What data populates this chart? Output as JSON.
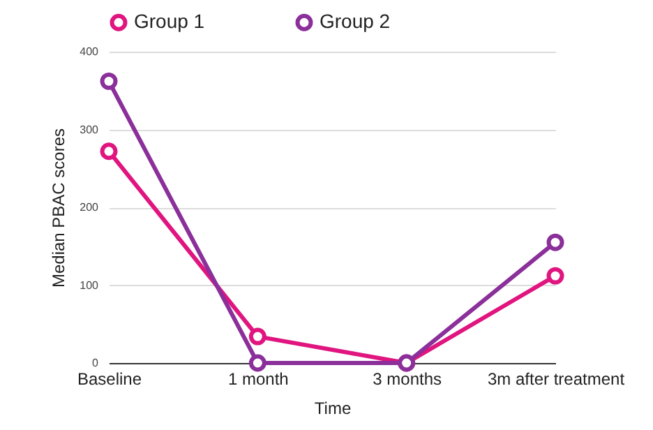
{
  "chart_data": {
    "type": "line",
    "xlabel": "Time",
    "ylabel": "Median PBAC scores",
    "categories": [
      "Baseline",
      "1 month",
      "3 months",
      "3m after treatment"
    ],
    "series": [
      {
        "name": "Group 1",
        "color": "#e0157f",
        "values": [
          272,
          34,
          0,
          112
        ]
      },
      {
        "name": "Group 2",
        "color": "#8b2f9a",
        "values": [
          362,
          0,
          0,
          155
        ]
      }
    ],
    "ylim": [
      0,
      400
    ],
    "yticks": [
      0,
      100,
      200,
      300,
      400
    ],
    "grid": "y",
    "legend": "top",
    "marker": "circle",
    "line_style": "solid"
  }
}
